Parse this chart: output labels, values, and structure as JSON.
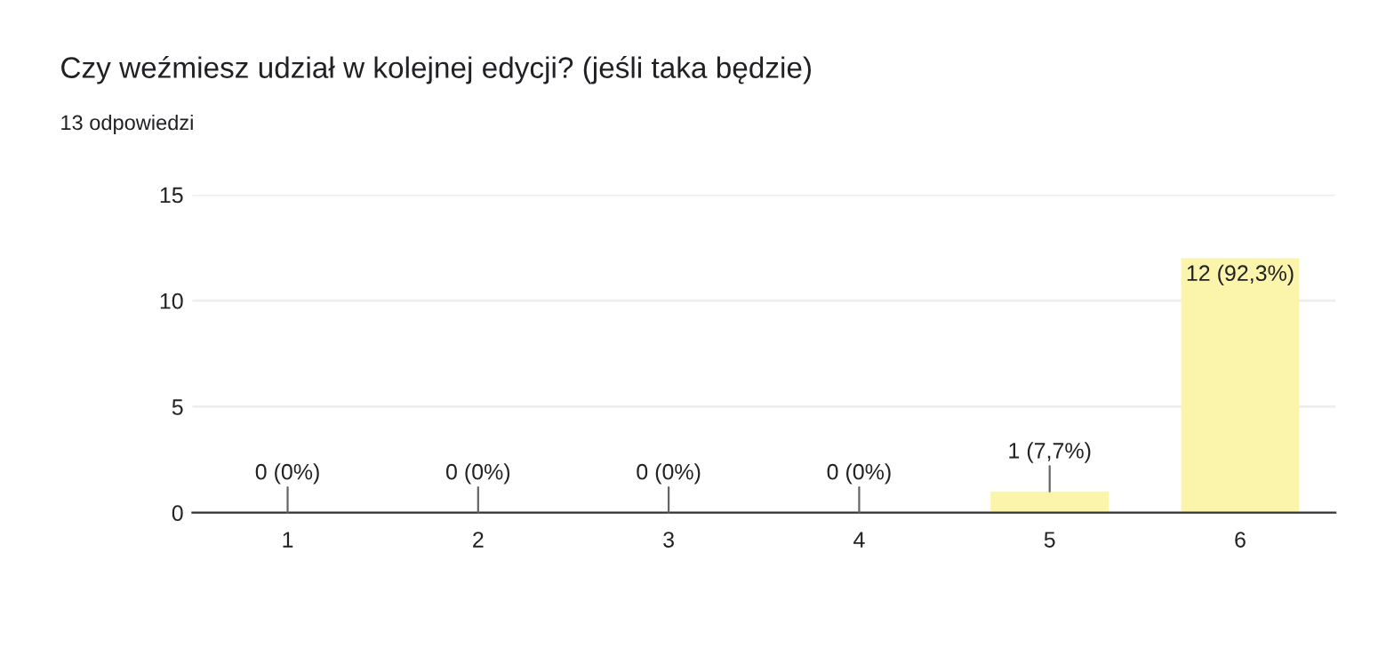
{
  "chart_data": {
    "type": "bar",
    "title": "Czy weźmiesz udział w kolejnej edycji? (jeśli taka będzie)",
    "subtitle": "13 odpowiedzi",
    "categories": [
      "1",
      "2",
      "3",
      "4",
      "5",
      "6"
    ],
    "values": [
      0,
      0,
      0,
      0,
      1,
      12
    ],
    "value_labels": [
      "0 (0%)",
      "0 (0%)",
      "0 (0%)",
      "0 (0%)",
      "1 (7,7%)",
      "12 (92,3%)"
    ],
    "color": "#fbf4ab",
    "ylim": [
      0,
      15
    ],
    "yticks": [
      0,
      5,
      10,
      15
    ],
    "grid": "y",
    "legend": false
  }
}
